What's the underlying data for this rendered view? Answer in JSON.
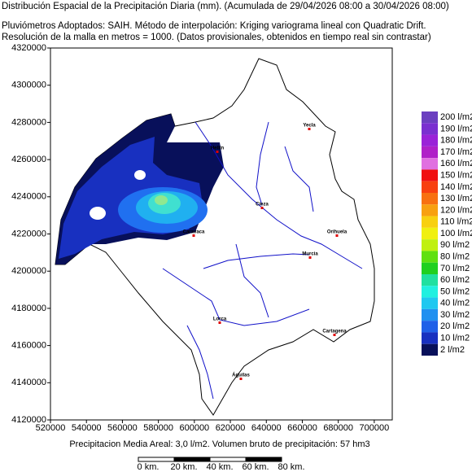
{
  "header": {
    "lines": [
      "Distribución Espacial de la Precipitación Diaria (mm). (Acumulada de 29/04/2026 08:00 a 30/04/2026 08:00)",
      "Pluviómetros Adoptados: SAIH.  Método de interpolación: Kriging variograma lineal con Quadratic Drift.",
      "Resolución de la malla en metros = 1000. (Datos provisionales, obtenidos en tiempo real sin contrastar)"
    ]
  },
  "map": {
    "xlim": [
      520000,
      710000
    ],
    "ylim": [
      4120000,
      4320000
    ],
    "xticks": [
      520000,
      540000,
      560000,
      580000,
      600000,
      620000,
      640000,
      660000,
      680000,
      700000
    ],
    "yticks": [
      4120000,
      4140000,
      4160000,
      4180000,
      4200000,
      4220000,
      4240000,
      4260000,
      4280000,
      4300000,
      4320000
    ],
    "places": [
      "Yecla",
      "Hellín",
      "Cieza",
      "Caravaca",
      "Orihuela",
      "Murcia",
      "Lorca",
      "Cartagena",
      "Águilas"
    ]
  },
  "legend": {
    "items": [
      {
        "label": "200 l/m2",
        "color": "#6b3fc0"
      },
      {
        "label": "190 l/m2",
        "color": "#7a2fd0"
      },
      {
        "label": "180 l/m2",
        "color": "#9a22d8"
      },
      {
        "label": "170 l/m2",
        "color": "#b020c8"
      },
      {
        "label": "160 l/m2",
        "color": "#e070e0"
      },
      {
        "label": "150 l/m2",
        "color": "#f01010"
      },
      {
        "label": "140 l/m2",
        "color": "#f84010"
      },
      {
        "label": "130 l/m2",
        "color": "#f87010"
      },
      {
        "label": "120 l/m2",
        "color": "#f8a010"
      },
      {
        "label": "110 l/m2",
        "color": "#f8d010"
      },
      {
        "label": "100 l/m2",
        "color": "#f0f010"
      },
      {
        "label": "90 l/m2",
        "color": "#c0f010"
      },
      {
        "label": "80 l/m2",
        "color": "#60e010"
      },
      {
        "label": "70 l/m2",
        "color": "#20d020"
      },
      {
        "label": "60 l/m2",
        "color": "#20e0a0"
      },
      {
        "label": "50 l/m2",
        "color": "#20f0e0"
      },
      {
        "label": "40 l/m2",
        "color": "#20c8f0"
      },
      {
        "label": "30 l/m2",
        "color": "#2090f0"
      },
      {
        "label": "20 l/m2",
        "color": "#2060e8"
      },
      {
        "label": "10 l/m2",
        "color": "#1830c0"
      },
      {
        "label": "2 l/m2",
        "color": "#08105a"
      }
    ]
  },
  "footer": "Precipitacion Media Areal: 3,0 l/m2. Volumen bruto de precipitación: 57 hm3",
  "scale": [
    "0 km.",
    "20 km.",
    "40 km.",
    "60 km.",
    "80 km."
  ]
}
